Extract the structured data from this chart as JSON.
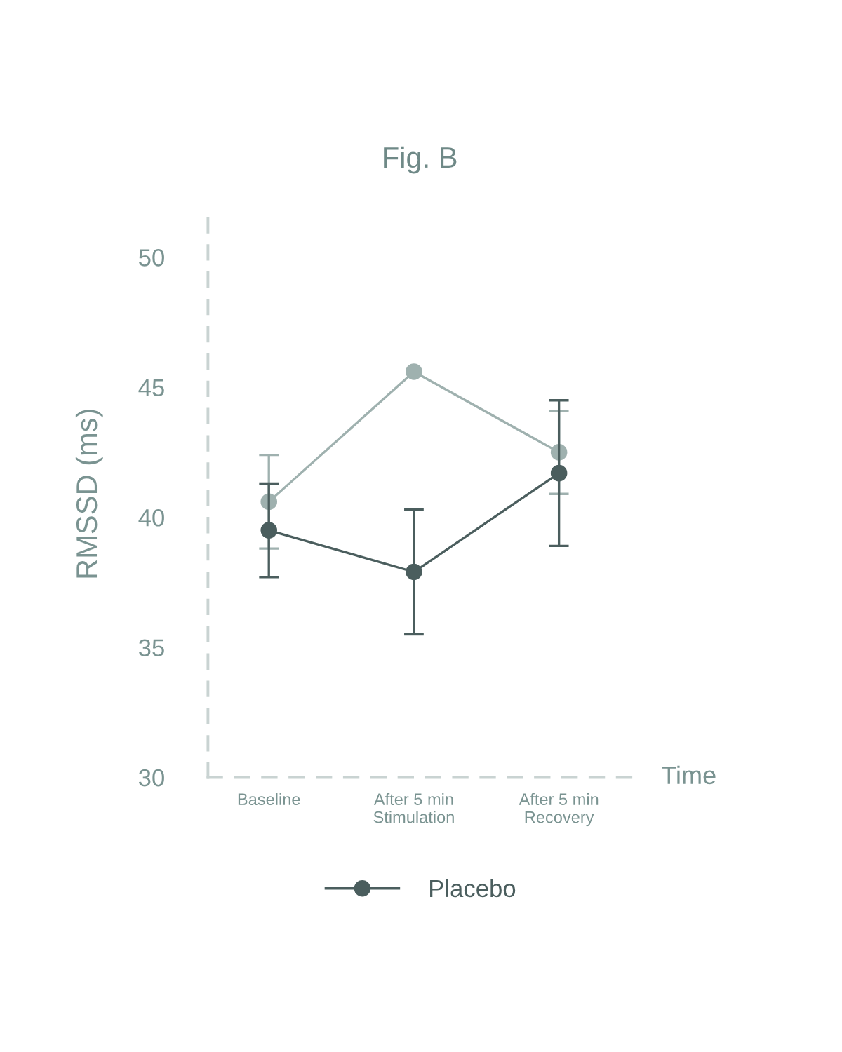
{
  "chart_data": {
    "type": "line",
    "title": "Fig. B",
    "xlabel": "Time",
    "ylabel": "RMSSD (ms)",
    "categories": [
      "Baseline",
      "After 5 min\nStimulation",
      "After 5 min\nRecovery"
    ],
    "series": [
      {
        "color": "#9fb1af",
        "values": [
          40.6,
          45.6,
          42.5
        ],
        "errors": [
          1.8,
          null,
          1.6
        ]
      },
      {
        "name": "Placebo",
        "color": "#4b5e5e",
        "values": [
          39.5,
          37.9,
          41.7
        ],
        "errors": [
          1.8,
          2.4,
          2.8
        ]
      }
    ],
    "ylim": [
      30,
      51.8
    ],
    "yticks": [
      30,
      35,
      40,
      45,
      50
    ],
    "marker": "circle",
    "line_style": "solid",
    "legend": "bottom",
    "grid": false
  }
}
